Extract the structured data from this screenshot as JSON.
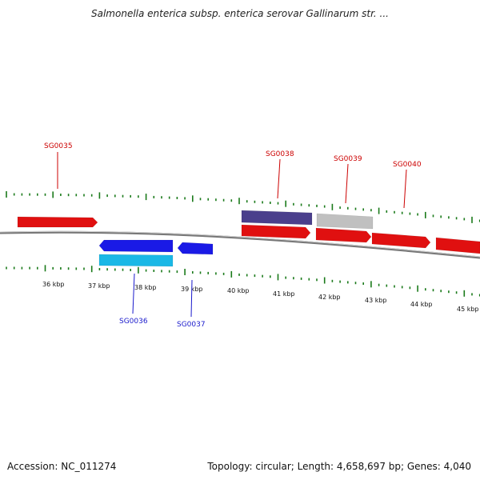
{
  "title": "Salmonella enterica subsp. enterica serovar Gallinarum str. ...",
  "ruler": {
    "labels": [
      "36 kbp",
      "37 kbp",
      "38 kbp",
      "39 kbp",
      "40 kbp",
      "41 kbp",
      "42 kbp",
      "43 kbp",
      "44 kbp",
      "45 kbp"
    ]
  },
  "genes": [
    {
      "id": "g-unlabeled",
      "label": "",
      "strand": "forward",
      "color": "#e01010"
    },
    {
      "id": "SG0035",
      "label": "SG0035",
      "strand": "forward",
      "color": "#e01010"
    },
    {
      "id": "SG0036",
      "label": "SG0036",
      "strand": "reverse",
      "color": "#1a1ae6"
    },
    {
      "id": "SG0036-b",
      "label": "",
      "strand": "reverse",
      "color": "#1ab8e6"
    },
    {
      "id": "SG0037",
      "label": "SG0037",
      "strand": "reverse",
      "color": "#1a1ae6"
    },
    {
      "id": "SG0038",
      "label": "SG0038",
      "strand": "forward",
      "color": "#e01010"
    },
    {
      "id": "SG0038-b",
      "label": "",
      "strand": "forward",
      "color": "#4a3f8c"
    },
    {
      "id": "SG0039",
      "label": "SG0039",
      "strand": "forward",
      "color": "#e01010"
    },
    {
      "id": "SG0039-b",
      "label": "",
      "strand": "forward",
      "color": "#c0c0c0"
    },
    {
      "id": "SG0040",
      "label": "SG0040",
      "strand": "forward",
      "color": "#e01010"
    },
    {
      "id": "g-right",
      "label": "",
      "strand": "forward",
      "color": "#e01010"
    }
  ],
  "colors": {
    "forward_label": "#cc0000",
    "reverse_label": "#1a1acc",
    "tick": "#1a7a1a",
    "backbone": "#777777"
  },
  "footer": {
    "accession": "Accession: NC_011274",
    "summary": "Topology: circular; Length: 4,658,697 bp; Genes: 4,040"
  }
}
